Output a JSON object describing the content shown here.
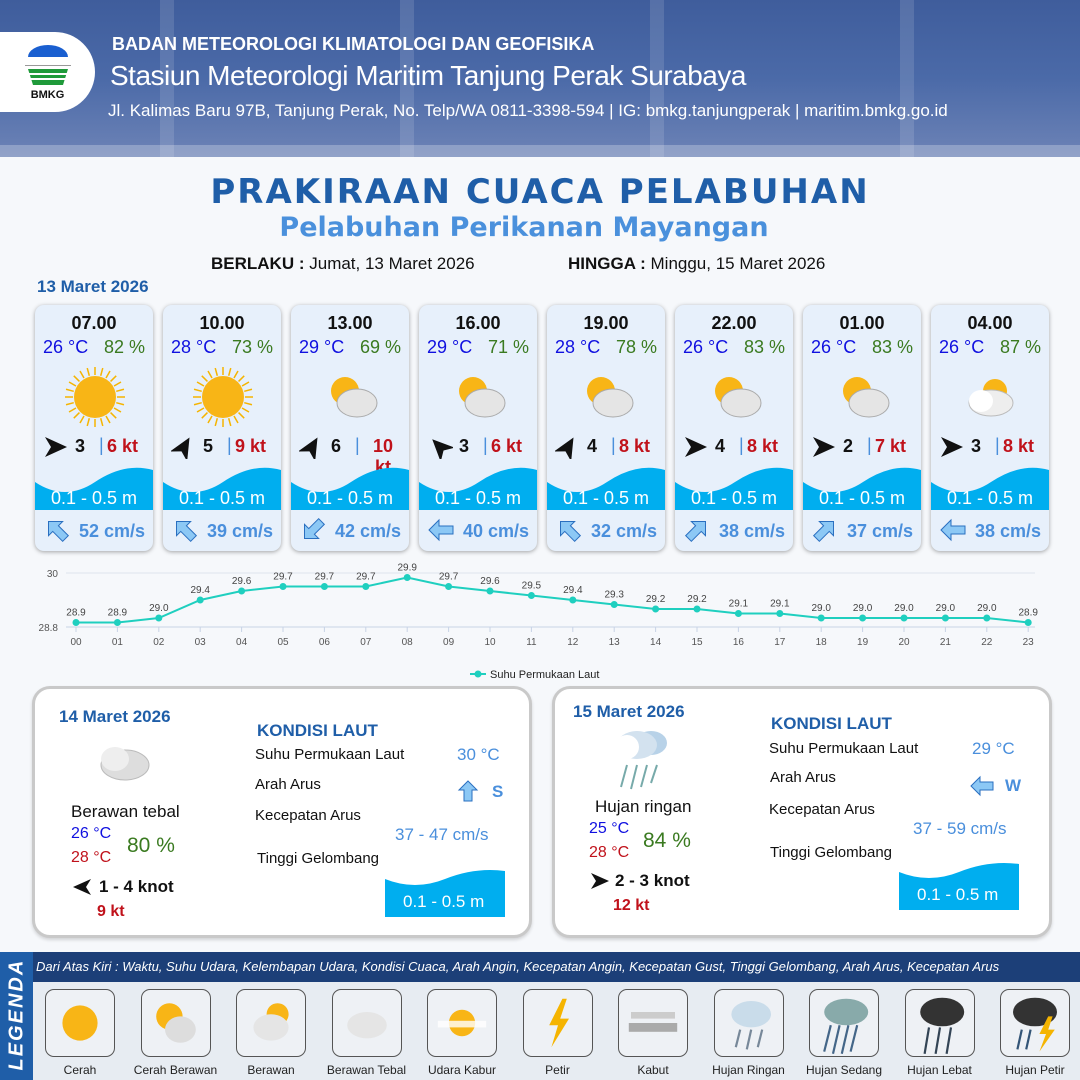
{
  "header": {
    "agency": "BADAN METEOROLOGI KLIMATOLOGI DAN GEOFISIKA",
    "station": "Stasiun Meteorologi Maritim Tanjung Perak Surabaya",
    "contact": "Jl. Kalimas Baru 97B, Tanjung Perak, No. Telp/WA 0811-3398-594 | IG: bmkg.tanjungperak | maritim.bmkg.go.id",
    "logo_text": "BMKG"
  },
  "title": "PRAKIRAAN CUACA PELABUHAN",
  "subtitle": "Pelabuhan Perikanan Mayangan",
  "validity": {
    "from_label": "BERLAKU :",
    "from": "Jumat, 13 Maret 2026",
    "to_label": "HINGGA :",
    "to": "Minggu, 15 Maret 2026"
  },
  "day1": "13 Maret 2026",
  "cards": [
    {
      "time": "07.00",
      "temp": "26 °C",
      "hum": "82 %",
      "weather": "Cerah",
      "wind_dir_deg": 0,
      "wind": "3",
      "gust": "6 kt",
      "wave": "0.1 - 0.5 m",
      "current_dir_deg": -135,
      "current": "52 cm/s"
    },
    {
      "time": "10.00",
      "temp": "28 °C",
      "hum": "73 %",
      "weather": "Cerah",
      "wind_dir_deg": -60,
      "wind": "5",
      "gust": "9 kt",
      "wave": "0.1 - 0.5 m",
      "current_dir_deg": -135,
      "current": "39 cm/s"
    },
    {
      "time": "13.00",
      "temp": "29 °C",
      "hum": "69 %",
      "weather": "Cerah Berawan",
      "wind_dir_deg": -60,
      "wind": "6",
      "gust": "10 kt",
      "wave": "0.1 - 0.5 m",
      "current_dir_deg": 135,
      "current": "42 cm/s"
    },
    {
      "time": "16.00",
      "temp": "29 °C",
      "hum": "71 %",
      "weather": "Cerah Berawan",
      "wind_dir_deg": -135,
      "wind": "3",
      "gust": "6 kt",
      "wave": "0.1 - 0.5 m",
      "current_dir_deg": 180,
      "current": "40 cm/s"
    },
    {
      "time": "19.00",
      "temp": "28 °C",
      "hum": "78 %",
      "weather": "Cerah Berawan",
      "wind_dir_deg": -60,
      "wind": "4",
      "gust": "8 kt",
      "wave": "0.1 - 0.5 m",
      "current_dir_deg": -135,
      "current": "32 cm/s"
    },
    {
      "time": "22.00",
      "temp": "26 °C",
      "hum": "83 %",
      "weather": "Cerah Berawan",
      "wind_dir_deg": 0,
      "wind": "4",
      "gust": "8 kt",
      "wave": "0.1 - 0.5 m",
      "current_dir_deg": -45,
      "current": "38 cm/s"
    },
    {
      "time": "01.00",
      "temp": "26 °C",
      "hum": "83 %",
      "weather": "Cerah Berawan",
      "wind_dir_deg": 0,
      "wind": "2",
      "gust": "7 kt",
      "wave": "0.1 - 0.5 m",
      "current_dir_deg": -45,
      "current": "37 cm/s"
    },
    {
      "time": "04.00",
      "temp": "26 °C",
      "hum": "87 %",
      "weather": "Berawan",
      "wind_dir_deg": 0,
      "wind": "3",
      "gust": "8 kt",
      "wave": "0.1 - 0.5 m",
      "current_dir_deg": 180,
      "current": "38 cm/s"
    }
  ],
  "chart_data": {
    "type": "line",
    "categories": [
      "00",
      "01",
      "02",
      "03",
      "04",
      "05",
      "06",
      "07",
      "08",
      "09",
      "10",
      "11",
      "12",
      "13",
      "14",
      "15",
      "16",
      "17",
      "18",
      "19",
      "20",
      "21",
      "22",
      "23"
    ],
    "series": [
      {
        "name": "Suhu Permukaan Laut",
        "values": [
          28.9,
          28.9,
          29.0,
          29.4,
          29.6,
          29.7,
          29.7,
          29.7,
          29.9,
          29.7,
          29.6,
          29.5,
          29.4,
          29.3,
          29.2,
          29.2,
          29.1,
          29.1,
          29.0,
          29.0,
          29.0,
          29.0,
          29.0,
          28.9
        ]
      }
    ],
    "ylim": [
      28.8,
      30
    ],
    "yticks": [
      "28.8",
      "30"
    ],
    "grid": true,
    "legend": "bottom",
    "color": "#1fcfbf"
  },
  "days": [
    {
      "date": "14 Maret 2026",
      "weather": "Berawan tebal",
      "tmin": "26 °C",
      "tmax": "28 °C",
      "hum": "80 %",
      "wind_dir_deg": 180,
      "wind": "1  - 4 knot",
      "gust": "9 kt",
      "kondisi": "KONDISI LAUT",
      "sst_label": "Suhu Permukaan Laut",
      "sst": "30 °C",
      "cur_dir_label": "Arah Arus",
      "cur_dir": "S",
      "cur_dir_deg": 90,
      "cur_spd_label": "Kecepatan Arus",
      "cur_spd": "37  - 47 cm/s",
      "wave_label": "Tinggi Gelombang",
      "wave": "0.1 - 0.5 m"
    },
    {
      "date": "15 Maret 2026",
      "weather": "Hujan ringan",
      "tmin": "25 °C",
      "tmax": "28 °C",
      "hum": "84 %",
      "wind_dir_deg": 0,
      "wind": "2  - 3 knot",
      "gust": "12 kt",
      "kondisi": "KONDISI LAUT",
      "sst_label": "Suhu Permukaan Laut",
      "sst": "29 °C",
      "cur_dir_label": "Arah Arus",
      "cur_dir": "W",
      "cur_dir_deg": 180,
      "cur_spd_label": "Kecepatan Arus",
      "cur_spd": "37 - 59 cm/s",
      "wave_label": "Tinggi Gelombang",
      "wave": "0.1 - 0.5 m"
    }
  ],
  "legend": {
    "title": "LEGENDA",
    "caption": "Dari Atas Kiri : Waktu, Suhu Udara, Kelembapan Udara, Kondisi Cuaca, Arah Angin, Kecepatan Angin, Kecepatan Gust, Tinggi Gelombang, Arah Arus, Kecepatan Arus",
    "items": [
      "Cerah",
      "Cerah Berawan",
      "Berawan",
      "Berawan Tebal",
      "Udara Kabur",
      "Petir",
      "Kabut",
      "Hujan Ringan",
      "Hujan Sedang",
      "Hujan Lebat",
      "Hujan Petir"
    ]
  },
  "colors": {
    "wave": "#00aeef",
    "title": "#1f5ea8",
    "temp": "#1010e0",
    "humidity": "#3a7a20",
    "gust": "#c0121b"
  }
}
